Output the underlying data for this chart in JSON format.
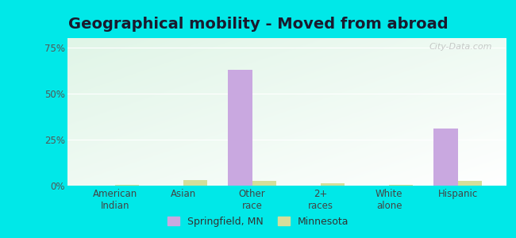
{
  "title": "Geographical mobility - Moved from abroad",
  "categories": [
    "American\nIndian",
    "Asian",
    "Other\nrace",
    "2+\nraces",
    "White\nalone",
    "Hispanic"
  ],
  "springfield_values": [
    0.0,
    0.0,
    63.0,
    0.0,
    0.0,
    31.0
  ],
  "minnesota_values": [
    0.5,
    3.0,
    2.5,
    1.5,
    0.5,
    2.5
  ],
  "bar_color_springfield": "#c9a8e0",
  "bar_color_minnesota": "#d4de9a",
  "background_color_outer": "#00e8e8",
  "grad_topleft": [
    0.878,
    0.961,
    0.906
  ],
  "grad_bottomright": [
    1.0,
    1.0,
    1.0
  ],
  "ylim": [
    0,
    80
  ],
  "yticks": [
    0,
    25,
    50,
    75
  ],
  "ytick_labels": [
    "0%",
    "25%",
    "50%",
    "75%"
  ],
  "legend_labels": [
    "Springfield, MN",
    "Minnesota"
  ],
  "bar_width": 0.35,
  "title_fontsize": 14,
  "tick_fontsize": 8.5,
  "legend_fontsize": 9
}
